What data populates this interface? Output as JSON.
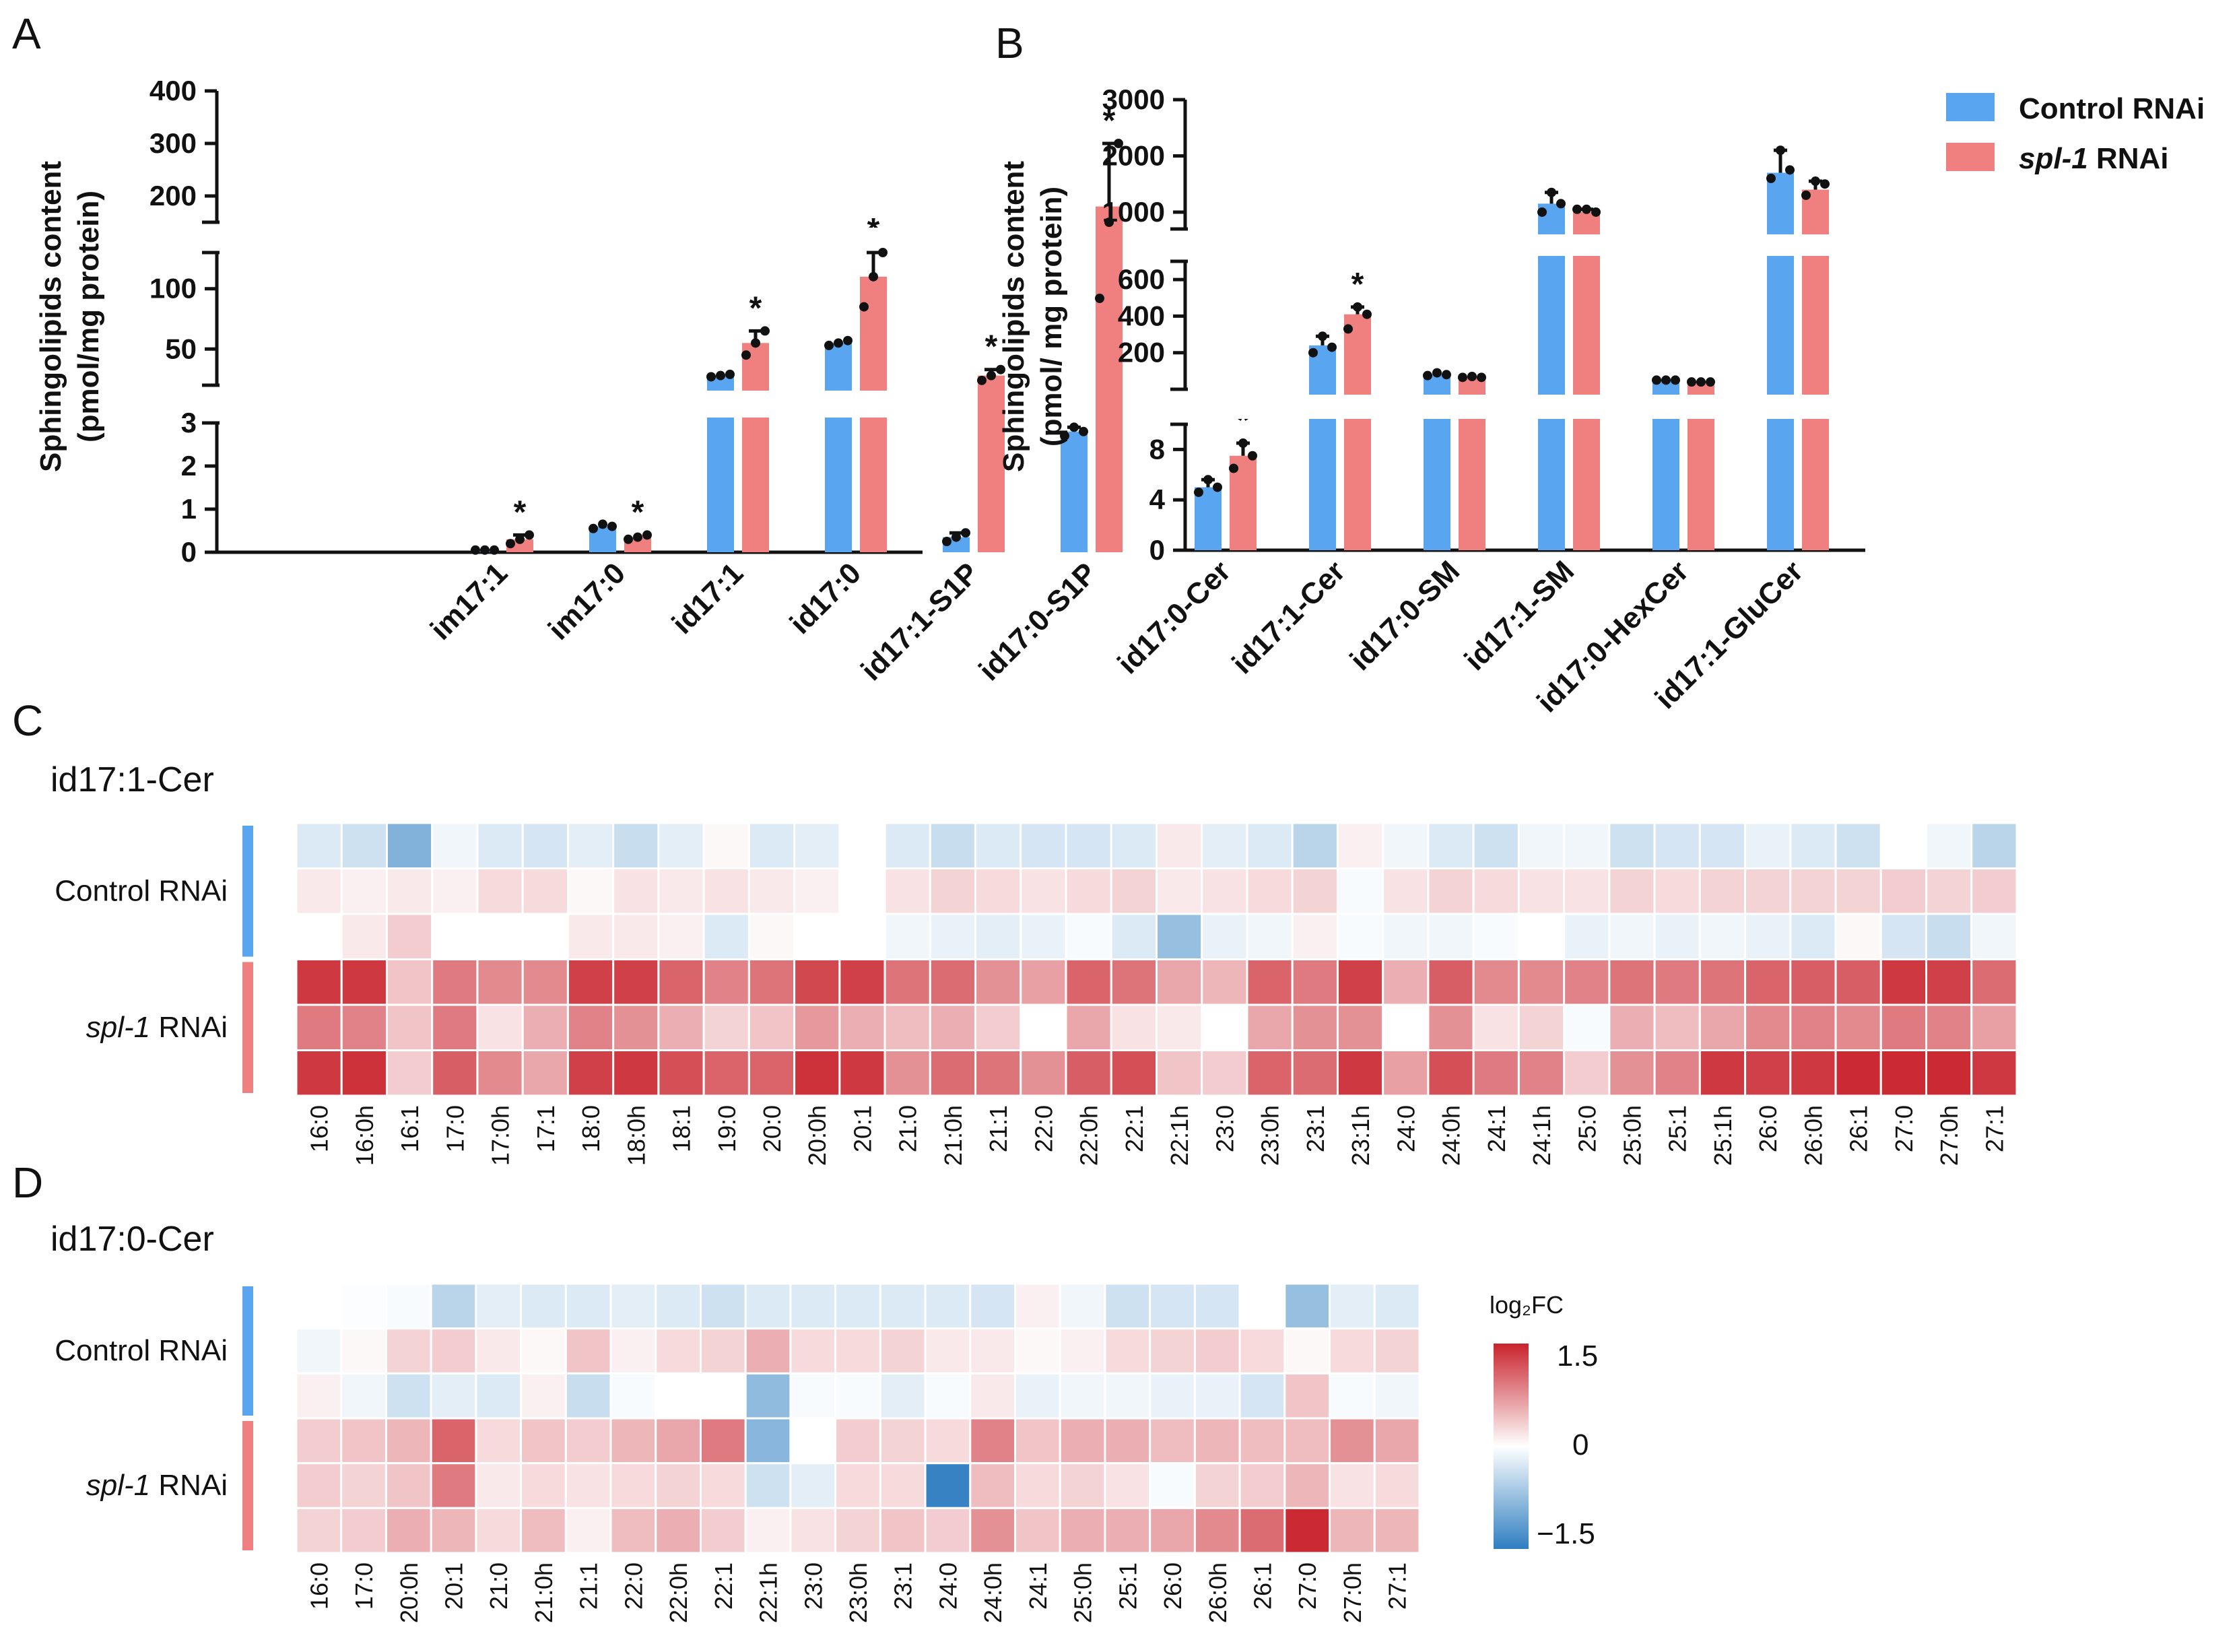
{
  "colors": {
    "control": "#5aa5f0",
    "spl1": "#f07f7f",
    "heat_low": "#2f7ec1",
    "heat_mid": "#ffffff",
    "heat_high": "#c9232c"
  },
  "legend": {
    "control": "Control RNAi",
    "spl1_italic": "spl-1",
    "spl1_rest": " RNAi"
  },
  "heatmap_rows": {
    "control": "Control RNAi",
    "spl1_italic": "spl-1",
    "spl1_rest": " RNAi"
  },
  "colorbar": {
    "title": "log₂FC",
    "ticks": [
      "1.5",
      "0",
      "−1.5"
    ],
    "max": 1.5,
    "min": -1.5
  },
  "chart_data": [
    {
      "panel": "A",
      "type": "bar",
      "ylabel": "Sphingolipids content",
      "ylabel2": "(pmol/mg protein)",
      "yaxis_broken": true,
      "y_tick_labels": [
        "0",
        "1",
        "2",
        "3",
        "50",
        "100",
        "200",
        "300",
        "400"
      ],
      "categories": [
        "im17:1",
        "im17:0",
        "id17:1",
        "id17:0",
        "id17:1-S1P",
        "id17:0-S1P"
      ],
      "series": [
        {
          "name": "Control RNAi",
          "values": [
            0.05,
            0.6,
            28,
            55,
            0.35,
            2.8
          ],
          "points": [
            [
              0.05,
              0.05,
              0.05
            ],
            [
              0.55,
              0.65,
              0.6
            ],
            [
              27,
              28,
              29
            ],
            [
              53,
              55,
              57
            ],
            [
              0.25,
              0.35,
              0.45
            ],
            [
              2.7,
              2.9,
              2.8
            ]
          ]
        },
        {
          "name": "spl-1 RNAi",
          "values": [
            0.3,
            0.35,
            55,
            110,
            28,
            180
          ],
          "points": [
            [
              0.2,
              0.3,
              0.4
            ],
            [
              0.3,
              0.35,
              0.4
            ],
            [
              45,
              55,
              65
            ],
            [
              85,
              110,
              130
            ],
            [
              24,
              28,
              33
            ],
            [
              92,
              150,
              300
            ]
          ]
        }
      ],
      "significant": [
        false,
        true,
        false,
        true,
        false,
        true,
        false,
        true,
        false,
        true,
        false,
        true
      ]
    },
    {
      "panel": "B",
      "type": "bar",
      "ylabel": "Sphingolipids content",
      "ylabel2": "(pmol/ mg protein)",
      "yaxis_broken": true,
      "y_tick_labels": [
        "0",
        "4",
        "8",
        "200",
        "400",
        "600",
        "1000",
        "2000",
        "3000"
      ],
      "categories": [
        "id17:0-Cer",
        "id17:1-Cer",
        "id17:0-SM",
        "id17:1-SM",
        "id17:0-HexCer",
        "id17:1-GluCer"
      ],
      "series": [
        {
          "name": "Control RNAi",
          "values": [
            5,
            240,
            80,
            1150,
            50,
            1700
          ],
          "points": [
            [
              4.6,
              5.6,
              5
            ],
            [
              200,
              290,
              230
            ],
            [
              75,
              90,
              80
            ],
            [
              1000,
              1350,
              1150
            ],
            [
              50,
              50,
              50
            ],
            [
              1600,
              2100,
              1750
            ]
          ]
        },
        {
          "name": "spl-1 RNAi",
          "values": [
            7.5,
            410,
            65,
            1000,
            40,
            1400
          ],
          "points": [
            [
              6.5,
              8.5,
              7.5
            ],
            [
              330,
              450,
              410
            ],
            [
              65,
              70,
              65
            ],
            [
              1050,
              1050,
              1000
            ],
            [
              40,
              40,
              40
            ],
            [
              1300,
              1550,
              1500
            ]
          ]
        }
      ],
      "significant": [
        false,
        true,
        false,
        true,
        false,
        false,
        false,
        false,
        false,
        false,
        false,
        false
      ]
    },
    {
      "panel": "C",
      "type": "heatmap",
      "title": "id17:1-Cer",
      "row_groups": [
        "Control RNAi",
        "spl-1 RNAi"
      ],
      "columns": [
        "16:0",
        "16:0h",
        "16:1",
        "17:0",
        "17:0h",
        "17:1",
        "18:0",
        "18:0h",
        "18:1",
        "19:0",
        "20:0",
        "20:0h",
        "20:1",
        "21:0",
        "21:0h",
        "21:1",
        "22:0",
        "22:0h",
        "22:1",
        "22:1h",
        "23:0",
        "23:0h",
        "23:1",
        "23:1h",
        "24:0",
        "24:0h",
        "24:1",
        "24:1h",
        "25:0",
        "25:0h",
        "25:1",
        "25:1h",
        "26:0",
        "26:0h",
        "26:1",
        "27:0",
        "27:0h",
        "27:1"
      ],
      "values": [
        [
          -0.25,
          -0.35,
          -0.9,
          -0.1,
          -0.25,
          -0.3,
          -0.2,
          -0.4,
          -0.2,
          0.05,
          -0.25,
          -0.2,
          0.0,
          -0.25,
          -0.4,
          -0.25,
          -0.3,
          -0.3,
          -0.25,
          0.15,
          -0.2,
          -0.25,
          -0.5,
          0.1,
          -0.1,
          -0.25,
          -0.35,
          -0.1,
          -0.1,
          -0.35,
          -0.3,
          -0.3,
          -0.15,
          -0.25,
          -0.35,
          0.0,
          -0.1,
          -0.5
        ],
        [
          0.15,
          0.1,
          0.15,
          0.1,
          0.25,
          0.25,
          0.05,
          0.2,
          0.15,
          0.2,
          0.15,
          0.1,
          0.0,
          0.2,
          0.3,
          0.25,
          0.2,
          0.25,
          0.3,
          0.15,
          0.2,
          0.25,
          0.3,
          -0.05,
          0.2,
          0.3,
          0.25,
          0.2,
          0.2,
          0.3,
          0.25,
          0.3,
          0.3,
          0.3,
          0.3,
          0.35,
          0.3,
          0.35
        ],
        [
          0.0,
          0.15,
          0.35,
          0.0,
          0.0,
          0.0,
          0.15,
          0.15,
          0.1,
          -0.25,
          0.05,
          0.0,
          0.0,
          -0.1,
          -0.15,
          -0.2,
          -0.15,
          -0.05,
          -0.25,
          -0.75,
          -0.15,
          -0.1,
          0.1,
          -0.05,
          -0.1,
          -0.1,
          -0.05,
          0.0,
          -0.15,
          -0.1,
          -0.15,
          -0.1,
          -0.15,
          -0.25,
          0.05,
          -0.3,
          -0.4,
          -0.1
        ]
      ],
      "values_spl1": [
        [
          1.35,
          1.35,
          0.4,
          0.9,
          0.8,
          0.8,
          1.3,
          1.3,
          1.05,
          0.85,
          0.95,
          1.25,
          1.3,
          0.95,
          1.0,
          0.75,
          0.65,
          1.05,
          0.95,
          0.6,
          0.5,
          1.05,
          0.9,
          1.3,
          0.55,
          1.1,
          0.8,
          0.8,
          0.85,
          0.95,
          0.9,
          0.95,
          1.05,
          1.1,
          1.1,
          1.35,
          1.3,
          1.0
        ],
        [
          0.9,
          0.85,
          0.4,
          0.9,
          0.2,
          0.55,
          0.85,
          0.75,
          0.55,
          0.3,
          0.4,
          0.7,
          0.55,
          0.45,
          0.55,
          0.35,
          0.0,
          0.6,
          0.2,
          0.15,
          0.0,
          0.6,
          0.75,
          0.75,
          0.0,
          0.75,
          0.2,
          0.3,
          -0.05,
          0.55,
          0.45,
          0.6,
          0.8,
          0.85,
          0.8,
          0.9,
          0.85,
          0.65
        ],
        [
          1.35,
          1.4,
          0.35,
          1.1,
          0.8,
          0.6,
          1.3,
          1.35,
          1.2,
          1.05,
          1.05,
          1.4,
          1.35,
          0.75,
          1.0,
          0.95,
          0.75,
          1.1,
          1.2,
          0.4,
          0.35,
          1.05,
          1.0,
          1.35,
          0.65,
          1.2,
          0.9,
          0.85,
          0.35,
          0.75,
          0.85,
          1.35,
          1.3,
          1.35,
          1.45,
          1.45,
          1.45,
          1.35
        ]
      ]
    },
    {
      "panel": "D",
      "type": "heatmap",
      "title": "id17:0-Cer",
      "row_groups": [
        "Control RNAi",
        "spl-1 RNAi"
      ],
      "columns": [
        "16:0",
        "17:0",
        "20:0h",
        "20:1",
        "21:0",
        "21:0h",
        "21:1",
        "22:0",
        "22:0h",
        "22:1",
        "22:1h",
        "23:0",
        "23:0h",
        "23:1",
        "24:0",
        "24:0h",
        "24:1",
        "25:0h",
        "25:1",
        "26:0",
        "26:0h",
        "26:1",
        "27:0",
        "27:0h",
        "27:1"
      ],
      "values": [
        [
          0.0,
          -0.02,
          -0.05,
          -0.5,
          -0.2,
          -0.25,
          -0.25,
          -0.2,
          -0.25,
          -0.35,
          -0.25,
          -0.25,
          -0.25,
          -0.25,
          -0.25,
          -0.3,
          0.1,
          -0.1,
          -0.35,
          -0.3,
          -0.3,
          0.0,
          -0.75,
          -0.2,
          -0.25
        ],
        [
          -0.1,
          0.05,
          0.3,
          0.35,
          0.15,
          0.05,
          0.4,
          0.1,
          0.25,
          0.3,
          0.55,
          0.25,
          0.25,
          0.3,
          0.15,
          0.15,
          0.05,
          0.1,
          0.25,
          0.3,
          0.35,
          0.25,
          0.05,
          0.25,
          0.3
        ],
        [
          0.1,
          -0.1,
          -0.35,
          -0.2,
          -0.25,
          0.1,
          -0.4,
          -0.05,
          0.0,
          0.0,
          -0.8,
          -0.05,
          -0.05,
          -0.2,
          -0.05,
          0.15,
          -0.15,
          -0.1,
          -0.1,
          -0.15,
          -0.15,
          -0.3,
          0.4,
          -0.05,
          -0.1
        ]
      ],
      "values_spl1": [
        [
          0.35,
          0.4,
          0.5,
          1.05,
          0.25,
          0.4,
          0.35,
          0.5,
          0.6,
          0.9,
          -0.85,
          0.0,
          0.35,
          0.3,
          0.25,
          0.85,
          0.4,
          0.55,
          0.55,
          0.45,
          0.5,
          0.45,
          0.45,
          0.75,
          0.6
        ],
        [
          0.35,
          0.3,
          0.4,
          0.9,
          0.15,
          0.25,
          0.2,
          0.25,
          0.3,
          0.25,
          -0.35,
          -0.2,
          0.25,
          0.25,
          -1.45,
          0.45,
          0.25,
          0.3,
          0.2,
          -0.05,
          0.3,
          0.35,
          0.5,
          0.2,
          0.25
        ],
        [
          0.3,
          0.35,
          0.55,
          0.5,
          0.25,
          0.45,
          0.1,
          0.45,
          0.55,
          0.35,
          0.1,
          0.2,
          0.3,
          0.4,
          0.35,
          0.75,
          0.4,
          0.55,
          0.55,
          0.6,
          0.8,
          1.0,
          1.45,
          0.5,
          0.5
        ]
      ]
    }
  ],
  "panel_labels": [
    "A",
    "B",
    "C",
    "D"
  ]
}
